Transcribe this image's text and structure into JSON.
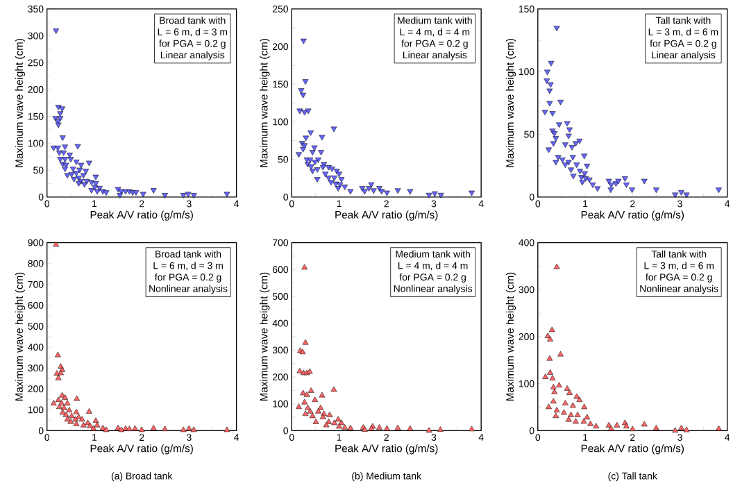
{
  "chart_data": [
    {
      "type": "scatter",
      "xlabel": "Peak A/V ratio (g/m/s)",
      "ylabel": "Maximum wave height (cm)",
      "xlim": [
        0,
        4
      ],
      "ylim": [
        0,
        350
      ],
      "marker": "triangle",
      "xticks": [
        0,
        {
          "value": 0.5,
          "label": null
        },
        1,
        {
          "value": 1.5,
          "label": null
        },
        2,
        {
          "value": 2.5,
          "label": null
        },
        3,
        {
          "value": 3.5,
          "label": null
        },
        4
      ],
      "yticks": [
        0,
        {
          "value": 25,
          "label": null
        },
        50,
        {
          "value": 75,
          "label": null
        },
        100,
        {
          "value": 125,
          "label": null
        },
        150,
        {
          "value": 175,
          "label": null
        },
        200,
        {
          "value": 225,
          "label": null
        },
        250,
        {
          "value": 275,
          "label": null
        },
        300,
        {
          "value": 325,
          "label": null
        },
        350
      ],
      "annotations": [
        "Broad tank with",
        "L = 6 m, d = 3 m",
        "for PGA = 0.2 g",
        "Linear analysis"
      ],
      "series": [
        {
          "color": "#6666ff",
          "x": [
            0.19,
            0.24,
            0.32,
            0.28,
            0.18,
            0.28,
            0.23,
            0.24,
            0.33,
            0.14,
            0.23,
            0.38,
            0.65,
            0.26,
            0.35,
            0.48,
            0.28,
            0.38,
            0.5,
            0.62,
            0.89,
            0.33,
            0.4,
            0.72,
            0.55,
            0.69,
            0.82,
            0.38,
            0.43,
            0.52,
            0.62,
            0.67,
            0.77,
            0.57,
            0.72,
            0.84,
            0.94,
            1.03,
            1.03,
            0.67,
            0.79,
            0.94,
            1.01,
            1.11,
            1.18,
            1.25,
            1.06,
            1.5,
            1.57,
            1.54,
            1.66,
            1.74,
            1.81,
            1.88,
            2.03,
            2.25,
            2.49,
            2.88,
            2.98,
            3.1,
            3.8
          ],
          "values": [
            310,
            168,
            165,
            156,
            147,
            147,
            141,
            135,
            111,
            92,
            92,
            94,
            95,
            83,
            83,
            79,
            71,
            71,
            71,
            66,
            64,
            62,
            60,
            60,
            53,
            51,
            49,
            53,
            41,
            43,
            45,
            36,
            41,
            34,
            30,
            30,
            28,
            38,
            26,
            26,
            24,
            13,
            19,
            17,
            11,
            9,
            11,
            15,
            11,
            4,
            11,
            11,
            9,
            9,
            6,
            13,
            4,
            4,
            6,
            4,
            6
          ]
        }
      ]
    },
    {
      "type": "scatter",
      "xlabel": "Peak A/V ratio (g/m/s)",
      "ylabel": "Maximum wave height (cm)",
      "xlim": [
        0,
        4
      ],
      "ylim": [
        0,
        250
      ],
      "marker": "triangle",
      "xticks": [
        0,
        {
          "value": 0.5,
          "label": null
        },
        1,
        {
          "value": 1.5,
          "label": null
        },
        2,
        {
          "value": 2.5,
          "label": null
        },
        3,
        {
          "value": 3.5,
          "label": null
        },
        4
      ],
      "yticks": [
        0,
        {
          "value": 25,
          "label": null
        },
        50,
        {
          "value": 75,
          "label": null
        },
        100,
        {
          "value": 125,
          "label": null
        },
        150,
        {
          "value": 175,
          "label": null
        },
        200,
        {
          "value": 225,
          "label": null
        },
        250
      ],
      "annotations": [
        "Medium tank with",
        "L = 4 m, d = 4 m",
        "for PGA = 0.2 g",
        "Linear analysis"
      ],
      "series": [
        {
          "color": "#6666ff",
          "x": [
            0.25,
            0.29,
            0.2,
            0.24,
            0.17,
            0.27,
            0.35,
            0.89,
            0.4,
            0.64,
            0.3,
            0.22,
            0.27,
            0.24,
            0.48,
            0.44,
            0.62,
            0.15,
            0.32,
            0.39,
            0.56,
            0.34,
            0.49,
            0.68,
            0.41,
            0.66,
            0.78,
            0.85,
            0.54,
            0.95,
            0.44,
            0.71,
            1.0,
            0.54,
            0.78,
            0.9,
            1.05,
            0.83,
            0.93,
            1.02,
            1.12,
            0.98,
            1.24,
            1.49,
            1.54,
            1.68,
            1.63,
            1.73,
            1.85,
            1.9,
            2.01,
            2.24,
            2.5,
            2.9,
            3.02,
            3.15,
            3.8
          ],
          "values": [
            208,
            154,
            142,
            136,
            115,
            113,
            115,
            91,
            86,
            80,
            79,
            72,
            69,
            64,
            66,
            60,
            60,
            57,
            50,
            50,
            50,
            44,
            47,
            44,
            41,
            40,
            40,
            38,
            37,
            35,
            35,
            31,
            31,
            24,
            26,
            26,
            24,
            20,
            18,
            17,
            14,
            12,
            8,
            12,
            8,
            17,
            12,
            9,
            12,
            8,
            6,
            9,
            8,
            3,
            5,
            3,
            6
          ]
        }
      ]
    },
    {
      "type": "scatter",
      "xlabel": "Peak A/V ratio (g/m/s)",
      "ylabel": "Maximum wave height (cm)",
      "xlim": [
        0,
        4
      ],
      "ylim": [
        0,
        150
      ],
      "marker": "triangle",
      "xticks": [
        0,
        {
          "value": 0.5,
          "label": null
        },
        1,
        {
          "value": 1.5,
          "label": null
        },
        2,
        {
          "value": 2.5,
          "label": null
        },
        3,
        {
          "value": 3.5,
          "label": null
        },
        4
      ],
      "yticks": [
        0,
        {
          "value": 25,
          "label": null
        },
        50,
        {
          "value": 75,
          "label": null
        },
        100,
        {
          "value": 125,
          "label": null
        },
        150
      ],
      "annotations": [
        "Tall tank with",
        "L = 3 m, d = 6 m",
        "for PGA = 0.2 g",
        "Linear analysis"
      ],
      "series": [
        {
          "color": "#6666ff",
          "x": [
            0.4,
            0.28,
            0.2,
            0.19,
            0.27,
            0.25,
            0.25,
            0.48,
            0.15,
            0.31,
            0.45,
            0.62,
            0.67,
            0.31,
            0.35,
            0.65,
            0.38,
            0.33,
            0.58,
            0.88,
            0.8,
            0.72,
            0.23,
            0.98,
            0.43,
            0.38,
            0.52,
            0.65,
            0.74,
            0.58,
            0.82,
            1.04,
            0.7,
            0.89,
            0.99,
            0.75,
            0.92,
            1.01,
            1.09,
            0.94,
            1.16,
            1.26,
            1.5,
            1.55,
            1.54,
            1.65,
            1.7,
            1.84,
            1.87,
            1.99,
            2.25,
            2.5,
            2.9,
            3.03,
            3.14,
            3.82
          ],
          "values": [
            135,
            107,
            100,
            93,
            90,
            85,
            75,
            76,
            68,
            67,
            58,
            59,
            54,
            53,
            51,
            49,
            47,
            43,
            42,
            45,
            43,
            40,
            38,
            33,
            32,
            28,
            30,
            28,
            32,
            26,
            26,
            25,
            22,
            21,
            19,
            17,
            16,
            15,
            14,
            12,
            10,
            7,
            13,
            10,
            6,
            11,
            13,
            15,
            10,
            6,
            13,
            6,
            2,
            4,
            2,
            6
          ]
        }
      ]
    },
    {
      "type": "scatter",
      "xlabel": "Peak A/V ratio (g/m/s)",
      "ylabel": "Maximum wave height (cm)",
      "xlim": [
        0,
        4
      ],
      "ylim": [
        0,
        900
      ],
      "marker": "triangle",
      "xticks": [
        0,
        {
          "value": 0.5,
          "label": null
        },
        1,
        {
          "value": 1.5,
          "label": null
        },
        2,
        {
          "value": 2.5,
          "label": null
        },
        3,
        {
          "value": 3.5,
          "label": null
        },
        4
      ],
      "yticks": [
        0,
        {
          "value": 50,
          "label": null
        },
        100,
        {
          "value": 150,
          "label": null
        },
        200,
        {
          "value": 250,
          "label": null
        },
        300,
        {
          "value": 350,
          "label": null
        },
        400,
        {
          "value": 450,
          "label": null
        },
        500,
        {
          "value": 550,
          "label": null
        },
        600,
        {
          "value": 650,
          "label": null
        },
        700,
        {
          "value": 750,
          "label": null
        },
        800,
        {
          "value": 850,
          "label": null
        },
        900
      ],
      "annotations": [
        "Broad tank with",
        "L = 6 m, d = 3 m",
        "for PGA = 0.2 g",
        "Nonlinear analysis",
        "(a) Broad tank"
      ],
      "series": [
        {
          "color": "#ff6666",
          "x": [
            0.19,
            0.23,
            0.29,
            0.32,
            0.21,
            0.29,
            0.24,
            0.32,
            0.38,
            0.63,
            0.24,
            0.14,
            0.31,
            0.43,
            0.26,
            0.36,
            0.47,
            0.33,
            0.62,
            0.89,
            0.4,
            0.52,
            0.67,
            0.43,
            0.6,
            0.74,
            0.5,
            0.86,
            1.03,
            0.62,
            0.77,
            0.91,
            1.06,
            0.98,
            1.18,
            1.25,
            1.5,
            1.57,
            1.66,
            1.74,
            1.86,
            2.0,
            2.25,
            2.49,
            2.88,
            3.0,
            3.1,
            3.8
          ],
          "values": [
            890,
            361,
            306,
            290,
            273,
            275,
            251,
            168,
            157,
            152,
            146,
            130,
            130,
            130,
            113,
            108,
            97,
            86,
            88,
            91,
            75,
            69,
            64,
            53,
            53,
            53,
            42,
            36,
            47,
            31,
            25,
            22,
            25,
            9,
            11,
            3,
            11,
            3,
            9,
            7,
            9,
            3,
            11,
            7,
            3,
            9,
            3,
            3
          ]
        }
      ]
    },
    {
      "type": "scatter",
      "xlabel": "Peak A/V ratio (g/m/s)",
      "ylabel": "Maximum wave height (cm)",
      "xlim": [
        0,
        4
      ],
      "ylim": [
        0,
        700
      ],
      "marker": "triangle",
      "xticks": [
        0,
        {
          "value": 0.5,
          "label": null
        },
        1,
        {
          "value": 1.5,
          "label": null
        },
        2,
        {
          "value": 2.5,
          "label": null
        },
        3,
        {
          "value": 3.5,
          "label": null
        },
        4
      ],
      "yticks": [
        0,
        {
          "value": 50,
          "label": null
        },
        100,
        {
          "value": 150,
          "label": null
        },
        200,
        {
          "value": 250,
          "label": null
        },
        300,
        {
          "value": 350,
          "label": null
        },
        400,
        {
          "value": 450,
          "label": null
        },
        500,
        {
          "value": 550,
          "label": null
        },
        600,
        {
          "value": 650,
          "label": null
        },
        700
      ],
      "annotations": [
        "Medium tank with",
        "L = 4 m, d = 4 m",
        "for PGA = 0.2 g",
        "Nonlinear analysis",
        "(b) Medium tank"
      ],
      "series": [
        {
          "color": "#ff6666",
          "x": [
            0.27,
            0.29,
            0.18,
            0.23,
            0.17,
            0.25,
            0.32,
            0.38,
            0.89,
            0.41,
            0.64,
            0.24,
            0.32,
            0.49,
            0.27,
            0.15,
            0.34,
            0.61,
            0.39,
            0.56,
            0.29,
            0.68,
            0.8,
            0.44,
            0.66,
            0.98,
            0.51,
            0.78,
            0.9,
            1.05,
            0.73,
            1.0,
            1.12,
            1.24,
            1.51,
            1.54,
            1.71,
            1.68,
            1.85,
            2.01,
            2.24,
            2.5,
            2.9,
            3.14,
            3.8
          ],
          "values": [
            607,
            327,
            297,
            292,
            221,
            214,
            214,
            219,
            152,
            148,
            131,
            139,
            133,
            114,
            105,
            88,
            84,
            84,
            71,
            71,
            62,
            62,
            58,
            54,
            50,
            41,
            32,
            32,
            28,
            28,
            20,
            15,
            11,
            9,
            11,
            3,
            15,
            7,
            11,
            7,
            9,
            7,
            0,
            3,
            5
          ]
        }
      ]
    },
    {
      "type": "scatter",
      "xlabel": "Peak A/V ratio (g/m/s)",
      "ylabel": "Maximum wave height (cm)",
      "xlim": [
        0,
        4
      ],
      "ylim": [
        0,
        400
      ],
      "marker": "triangle",
      "xticks": [
        0,
        {
          "value": 0.5,
          "label": null
        },
        1,
        {
          "value": 1.5,
          "label": null
        },
        2,
        {
          "value": 2.5,
          "label": null
        },
        3,
        {
          "value": 3.5,
          "label": null
        },
        4
      ],
      "yticks": [
        0,
        {
          "value": 50,
          "label": null
        },
        100,
        {
          "value": 150,
          "label": null
        },
        200,
        {
          "value": 250,
          "label": null
        },
        300,
        {
          "value": 350,
          "label": null
        },
        400
      ],
      "annotations": [
        "Tall tank with",
        "L = 3 m, d = 6 m",
        "for PGA = 0.2 g",
        "Nonlinear analysis",
        "(c) Tall tank"
      ],
      "series": [
        {
          "color": "#ff6666",
          "x": [
            0.4,
            0.3,
            0.21,
            0.26,
            0.48,
            0.25,
            0.26,
            0.16,
            0.31,
            0.45,
            0.62,
            0.33,
            0.35,
            0.67,
            0.82,
            0.88,
            0.58,
            0.33,
            0.98,
            0.23,
            0.74,
            0.4,
            0.55,
            0.38,
            0.7,
            0.84,
            1.04,
            0.65,
            0.8,
            0.97,
            1.11,
            1.23,
            1.5,
            1.55,
            1.67,
            1.84,
            1.87,
            2.0,
            2.25,
            2.5,
            2.9,
            3.03,
            3.14,
            3.82
          ],
          "values": [
            348,
            214,
            201,
            194,
            162,
            153,
            123,
            114,
            111,
            96,
            89,
            92,
            82,
            80,
            72,
            65,
            58,
            62,
            50,
            50,
            53,
            43,
            38,
            31,
            33,
            33,
            28,
            23,
            19,
            19,
            14,
            9,
            11,
            4,
            11,
            16,
            9,
            3,
            13,
            5,
            0,
            5,
            1,
            4
          ]
        }
      ]
    }
  ]
}
